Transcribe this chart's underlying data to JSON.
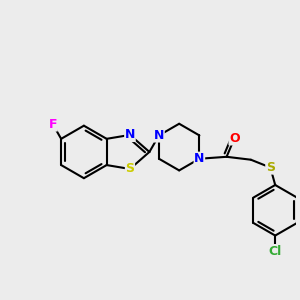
{
  "background_color": "#ececec",
  "bond_color": "#000000",
  "atom_colors": {
    "F": "#ff00ff",
    "N": "#0000ff",
    "O": "#ff0000",
    "S_ring": "#cccc00",
    "S_thio": "#aaaa00",
    "Cl": "#33aa33",
    "C": "#000000"
  },
  "figsize": [
    3.0,
    3.0
  ],
  "dpi": 100
}
